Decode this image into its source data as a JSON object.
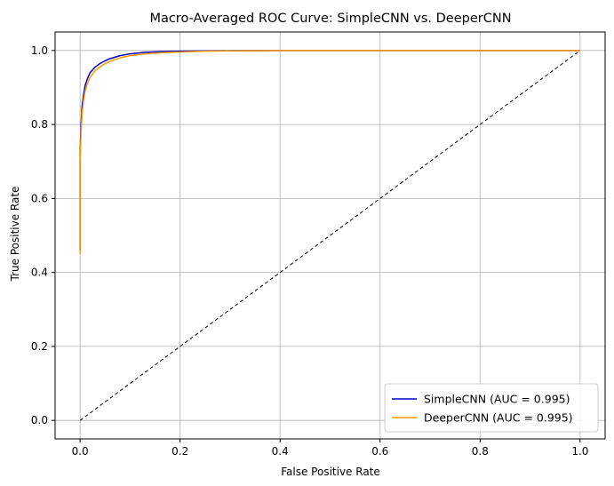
{
  "chart_data": {
    "type": "line",
    "title": "Macro-Averaged ROC Curve: SimpleCNN vs. DeeperCNN",
    "xlabel": "False Positive Rate",
    "ylabel": "True Positive Rate",
    "xlim": [
      -0.05,
      1.05
    ],
    "ylim": [
      -0.05,
      1.05
    ],
    "xticks": [
      0.0,
      0.2,
      0.4,
      0.6,
      0.8,
      1.0
    ],
    "xtick_labels": [
      "0.0",
      "0.2",
      "0.4",
      "0.6",
      "0.8",
      "1.0"
    ],
    "yticks": [
      0.0,
      0.2,
      0.4,
      0.6,
      0.8,
      1.0
    ],
    "ytick_labels": [
      "0.0",
      "0.2",
      "0.4",
      "0.6",
      "0.8",
      "1.0"
    ],
    "grid": true,
    "legend_position": "lower-right",
    "series": [
      {
        "name": "SimpleCNN (AUC = 0.995)",
        "color": "#0000cc",
        "x": [
          0,
          0,
          0.002,
          0.004,
          0.007,
          0.01,
          0.015,
          0.02,
          0.03,
          0.04,
          0.05,
          0.06,
          0.08,
          0.1,
          0.13,
          0.16,
          0.2,
          0.25,
          0.3,
          0.4,
          0.5,
          0.6,
          0.7,
          0.8,
          0.9,
          1.0
        ],
        "y": [
          0.46,
          0.72,
          0.8,
          0.85,
          0.88,
          0.905,
          0.925,
          0.94,
          0.955,
          0.965,
          0.972,
          0.978,
          0.986,
          0.991,
          0.995,
          0.997,
          0.998,
          0.999,
          0.9995,
          1.0,
          1.0,
          1.0,
          1.0,
          1.0,
          1.0,
          1.0
        ]
      },
      {
        "name": "DeeperCNN (AUC = 0.995)",
        "color": "#ff9900",
        "x": [
          0,
          0,
          0.002,
          0.004,
          0.007,
          0.01,
          0.015,
          0.02,
          0.03,
          0.04,
          0.05,
          0.06,
          0.08,
          0.1,
          0.13,
          0.16,
          0.2,
          0.25,
          0.3,
          0.4,
          0.5,
          0.6,
          0.7,
          0.8,
          0.9,
          1.0
        ],
        "y": [
          0.45,
          0.7,
          0.78,
          0.83,
          0.865,
          0.89,
          0.912,
          0.928,
          0.945,
          0.956,
          0.964,
          0.971,
          0.98,
          0.986,
          0.991,
          0.994,
          0.996,
          0.998,
          0.999,
          1.0,
          1.0,
          1.0,
          1.0,
          1.0,
          1.0,
          1.0
        ]
      },
      {
        "name": "",
        "color": "#000000",
        "dashed": true,
        "x": [
          0,
          1
        ],
        "y": [
          0,
          1
        ]
      }
    ]
  }
}
